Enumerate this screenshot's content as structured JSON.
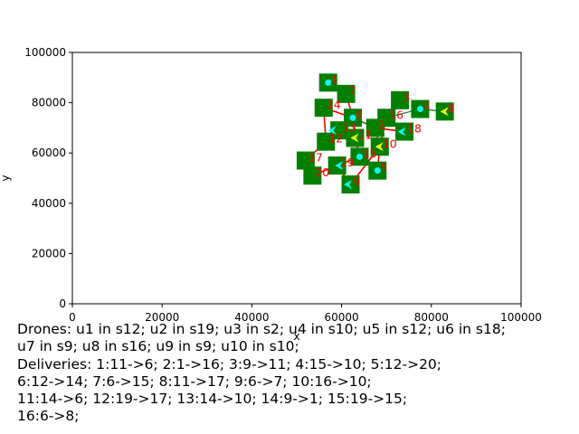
{
  "chart_data": {
    "type": "scatter",
    "title": "",
    "xlabel": "x",
    "ylabel": "y",
    "xlim": [
      0,
      100000
    ],
    "ylim": [
      0,
      100000
    ],
    "x_ticks": [
      0,
      20000,
      40000,
      60000,
      80000,
      100000
    ],
    "y_ticks": [
      0,
      20000,
      40000,
      60000,
      80000,
      100000
    ],
    "colors": {
      "station": "#008000",
      "label": "#ff0000",
      "route": "#ff0000",
      "link": "#2e7d32",
      "drone": "#00ffff",
      "active": "#ffff00"
    },
    "stations": [
      {
        "id": "1",
        "x": 57000,
        "y": 88000
      },
      {
        "id": "2",
        "x": 67500,
        "y": 70000
      },
      {
        "id": "3",
        "x": 73000,
        "y": 81000
      },
      {
        "id": "4",
        "x": 77500,
        "y": 77500
      },
      {
        "id": "5",
        "x": 68000,
        "y": 53000
      },
      {
        "id": "6",
        "x": 62500,
        "y": 74000
      },
      {
        "id": "7",
        "x": 61000,
        "y": 83500
      },
      {
        "id": "8",
        "x": 83000,
        "y": 76500
      },
      {
        "id": "9",
        "x": 62000,
        "y": 47500
      },
      {
        "id": "10",
        "x": 68500,
        "y": 62500
      },
      {
        "id": "11",
        "x": 63000,
        "y": 66000
      },
      {
        "id": "12",
        "x": 56500,
        "y": 64500
      },
      {
        "id": "13",
        "x": 59500,
        "y": 69000
      },
      {
        "id": "14",
        "x": 56000,
        "y": 78000
      },
      {
        "id": "15",
        "x": 64000,
        "y": 58500
      },
      {
        "id": "16",
        "x": 70000,
        "y": 74000
      },
      {
        "id": "17",
        "x": 52000,
        "y": 57000
      },
      {
        "id": "18",
        "x": 74000,
        "y": 68500
      },
      {
        "id": "19",
        "x": 59000,
        "y": 55000
      },
      {
        "id": "20",
        "x": 53500,
        "y": 51000
      }
    ],
    "drones": [
      {
        "x": 57000,
        "y": 88000,
        "marker": "dot"
      },
      {
        "x": 62500,
        "y": 74000,
        "marker": "dot"
      },
      {
        "x": 77500,
        "y": 77500,
        "marker": "dot"
      },
      {
        "x": 64000,
        "y": 58500,
        "marker": "dot"
      },
      {
        "x": 68000,
        "y": 53000,
        "marker": "dot"
      },
      {
        "x": 58000,
        "y": 69000,
        "marker": "arrow"
      },
      {
        "x": 73500,
        "y": 68500,
        "marker": "arrow"
      },
      {
        "x": 59500,
        "y": 55000,
        "marker": "arrow"
      },
      {
        "x": 61500,
        "y": 47500,
        "marker": "arrow"
      },
      {
        "x": 63000,
        "y": 66000,
        "marker": "arrow-active"
      },
      {
        "x": 68500,
        "y": 62500,
        "marker": "arrow-active"
      },
      {
        "x": 83000,
        "y": 76500,
        "marker": "arrow-active"
      }
    ],
    "routes": [
      [
        [
          "5",
          "10"
        ],
        [
          "10",
          "2"
        ],
        [
          "2",
          "6"
        ],
        [
          "6",
          "14"
        ],
        [
          "14",
          "12"
        ],
        [
          "12",
          "17"
        ],
        [
          "17",
          "20"
        ],
        [
          "20",
          "19"
        ],
        [
          "19",
          "9"
        ],
        [
          "9",
          "10"
        ]
      ],
      [
        [
          "11",
          "6"
        ],
        [
          "6",
          "7"
        ],
        [
          "15",
          "11"
        ],
        [
          "13",
          "12"
        ],
        [
          "10",
          "16"
        ],
        [
          "16",
          "18"
        ],
        [
          "18",
          "2"
        ],
        [
          "19",
          "15"
        ]
      ]
    ],
    "links": [
      [
        "16",
        "3"
      ],
      [
        "16",
        "4"
      ],
      [
        "4",
        "8"
      ],
      [
        "6",
        "2"
      ]
    ]
  },
  "caption": {
    "lines": [
      "Drones: u1 in s12; u2 in s19; u3 in s2; u4 in s10; u5 in s12; u6 in s18;",
      "u7 in s9; u8 in s16; u9 in s9; u10 in s10;",
      "Deliveries: 1:11->6; 2:1->16; 3:9->11; 4:15->10; 5:12->20;",
      "6:12->14; 7:6->15; 8:11->17; 9:6->7; 10:16->10;",
      "11:14->6; 12:19->17; 13:14->10; 14:9->1; 15:19->15;",
      "16:6->8;"
    ]
  }
}
